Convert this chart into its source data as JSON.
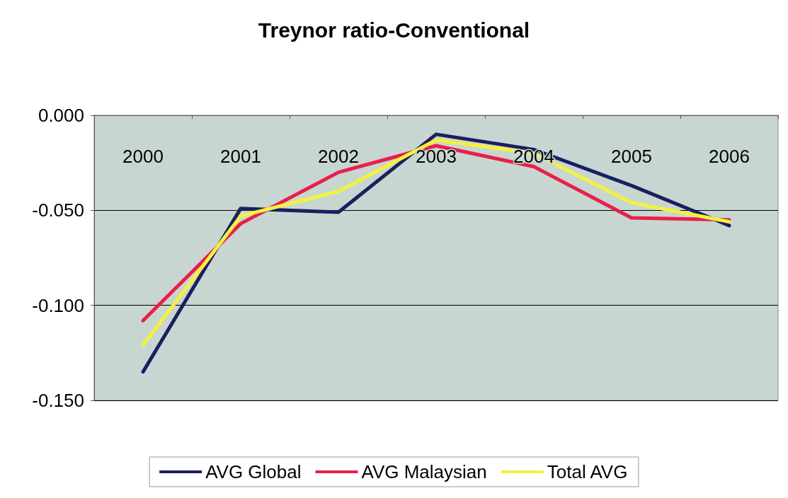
{
  "chart_data": {
    "type": "line",
    "title": "Treynor ratio-Conventional",
    "categories": [
      "2000",
      "2001",
      "2002",
      "2003",
      "2004",
      "2005",
      "2006"
    ],
    "series": [
      {
        "name": "AVG Global",
        "color": "#1b1f5e",
        "values": [
          -0.135,
          -0.049,
          -0.051,
          -0.01,
          -0.018,
          -0.037,
          -0.058
        ]
      },
      {
        "name": "AVG Malaysian",
        "color": "#e8204a",
        "values": [
          -0.108,
          -0.057,
          -0.03,
          -0.016,
          -0.027,
          -0.054,
          -0.055
        ]
      },
      {
        "name": "Total AVG",
        "color": "#f5f040",
        "values": [
          -0.121,
          -0.053,
          -0.04,
          -0.013,
          -0.02,
          -0.046,
          -0.056
        ]
      }
    ],
    "ylim": [
      -0.15,
      0
    ],
    "yticks": [
      {
        "value": 0,
        "label": "0.000"
      },
      {
        "value": -0.05,
        "label": "-0.050"
      },
      {
        "value": -0.1,
        "label": "-0.100"
      },
      {
        "value": -0.15,
        "label": "-0.150"
      }
    ],
    "grid": "y",
    "legend": "bottom",
    "marker": "none",
    "line_style": "solid"
  }
}
